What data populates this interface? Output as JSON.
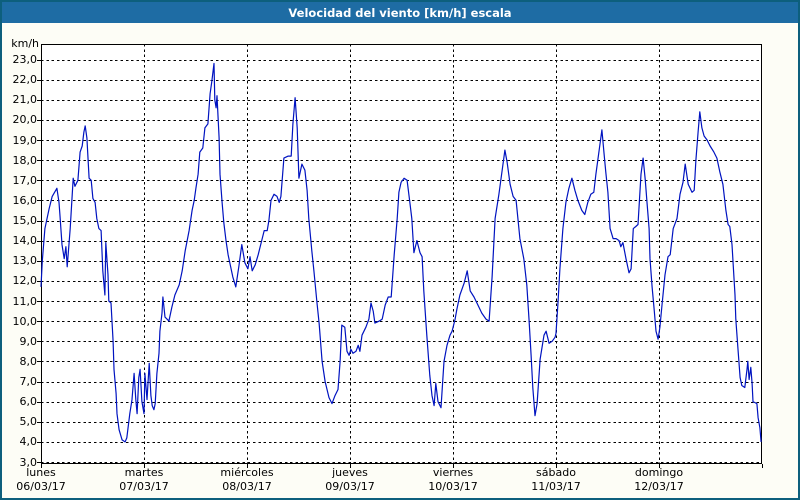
{
  "window": {
    "title": "Velocidad del viento [km/h] escala"
  },
  "chart_data": {
    "type": "line",
    "title": "Velocidad del viento [km/h] escala",
    "ylabel": "km/h",
    "xlabel": "",
    "ylim": [
      3,
      23
    ],
    "y_tick_step": 1,
    "grid": "dashed",
    "legend": "none",
    "y_tick_labels": [
      "23,0",
      "22,0",
      "21,0",
      "20,0",
      "19,0",
      "18,0",
      "17,0",
      "16,0",
      "15,0",
      "14,0",
      "13,0",
      "12,0",
      "11,0",
      "10,0",
      "9,0",
      "8,0",
      "7,0",
      "6,0",
      "5,0",
      "4,0",
      "3,0"
    ],
    "x_days": [
      {
        "name": "lunes",
        "date": "06/03/17"
      },
      {
        "name": "martes",
        "date": "07/03/17"
      },
      {
        "name": "miércoles",
        "date": "08/03/17"
      },
      {
        "name": "jueves",
        "date": "09/03/17"
      },
      {
        "name": "viernes",
        "date": "10/03/17"
      },
      {
        "name": "sábado",
        "date": "11/03/17"
      },
      {
        "name": "domingo",
        "date": "12/03/17"
      }
    ],
    "hours_total": 168,
    "series": [
      {
        "name": "Velocidad del viento [km/h]",
        "color": "#0013c0",
        "points": [
          [
            0,
            11.7
          ],
          [
            0.3,
            13.0
          ],
          [
            0.9,
            14.6
          ],
          [
            1.9,
            15.6
          ],
          [
            2.6,
            16.2
          ],
          [
            3.7,
            16.6
          ],
          [
            4.2,
            15.9
          ],
          [
            4.4,
            15.3
          ],
          [
            4.9,
            13.8
          ],
          [
            5.4,
            13.1
          ],
          [
            5.8,
            13.7
          ],
          [
            6.1,
            12.7
          ],
          [
            6.8,
            14.6
          ],
          [
            7.5,
            17.1
          ],
          [
            7.9,
            16.7
          ],
          [
            8.6,
            17.0
          ],
          [
            9.1,
            18.4
          ],
          [
            9.6,
            18.7
          ],
          [
            10.0,
            19.4
          ],
          [
            10.3,
            19.7
          ],
          [
            10.7,
            19.1
          ],
          [
            11.2,
            17.1
          ],
          [
            11.7,
            17.0
          ],
          [
            12.1,
            16.1
          ],
          [
            12.6,
            15.9
          ],
          [
            13.0,
            15.1
          ],
          [
            13.5,
            14.6
          ],
          [
            14.0,
            14.5
          ],
          [
            14.4,
            12.5
          ],
          [
            14.9,
            11.3
          ],
          [
            15.1,
            13.9
          ],
          [
            15.6,
            12.3
          ],
          [
            15.8,
            11.0
          ],
          [
            16.3,
            10.9
          ],
          [
            16.8,
            9.0
          ],
          [
            17.0,
            7.6
          ],
          [
            17.5,
            6.4
          ],
          [
            17.7,
            5.4
          ],
          [
            18.2,
            4.6
          ],
          [
            18.9,
            4.1
          ],
          [
            19.6,
            4.0
          ],
          [
            20.0,
            4.2
          ],
          [
            20.7,
            5.4
          ],
          [
            21.2,
            6.1
          ],
          [
            21.7,
            7.4
          ],
          [
            22.1,
            6.1
          ],
          [
            22.4,
            5.4
          ],
          [
            22.8,
            7.2
          ],
          [
            23.1,
            7.6
          ],
          [
            23.5,
            6.0
          ],
          [
            24.0,
            5.4
          ],
          [
            24.2,
            7.4
          ],
          [
            24.7,
            6.1
          ],
          [
            25.2,
            7.9
          ],
          [
            25.6,
            6.3
          ],
          [
            25.9,
            5.8
          ],
          [
            26.3,
            5.6
          ],
          [
            26.6,
            5.9
          ],
          [
            27.0,
            7.4
          ],
          [
            27.5,
            8.4
          ],
          [
            27.7,
            9.5
          ],
          [
            28.2,
            10.4
          ],
          [
            28.4,
            11.2
          ],
          [
            28.9,
            10.2
          ],
          [
            29.8,
            10.0
          ],
          [
            30.5,
            10.7
          ],
          [
            31.2,
            11.3
          ],
          [
            32.2,
            11.8
          ],
          [
            32.9,
            12.5
          ],
          [
            33.6,
            13.5
          ],
          [
            34.5,
            14.5
          ],
          [
            35.2,
            15.5
          ],
          [
            35.7,
            16.0
          ],
          [
            36.1,
            16.6
          ],
          [
            36.6,
            17.3
          ],
          [
            37.0,
            18.4
          ],
          [
            37.7,
            18.6
          ],
          [
            38.2,
            19.6
          ],
          [
            38.9,
            19.8
          ],
          [
            39.4,
            21.3
          ],
          [
            39.8,
            21.9
          ],
          [
            40.3,
            22.8
          ],
          [
            40.5,
            21.0
          ],
          [
            40.8,
            20.6
          ],
          [
            41.0,
            21.2
          ],
          [
            41.5,
            19.1
          ],
          [
            41.7,
            17.3
          ],
          [
            42.2,
            15.9
          ],
          [
            42.6,
            14.9
          ],
          [
            43.1,
            14.0
          ],
          [
            43.6,
            13.3
          ],
          [
            44.0,
            12.9
          ],
          [
            44.7,
            12.2
          ],
          [
            45.4,
            11.7
          ],
          [
            46.1,
            12.7
          ],
          [
            46.8,
            13.8
          ],
          [
            47.5,
            12.9
          ],
          [
            48.2,
            12.6
          ],
          [
            48.7,
            13.2
          ],
          [
            49.2,
            12.5
          ],
          [
            49.9,
            12.8
          ],
          [
            50.6,
            13.3
          ],
          [
            51.3,
            13.9
          ],
          [
            52.0,
            14.5
          ],
          [
            52.7,
            14.5
          ],
          [
            53.1,
            15.0
          ],
          [
            53.6,
            16.0
          ],
          [
            54.3,
            16.3
          ],
          [
            55.0,
            16.2
          ],
          [
            55.5,
            15.9
          ],
          [
            55.9,
            16.2
          ],
          [
            56.6,
            18.1
          ],
          [
            57.6,
            18.2
          ],
          [
            58.3,
            18.2
          ],
          [
            58.7,
            19.8
          ],
          [
            59.2,
            21.1
          ],
          [
            59.7,
            19.6
          ],
          [
            60.1,
            17.1
          ],
          [
            60.8,
            17.8
          ],
          [
            61.5,
            17.5
          ],
          [
            62.0,
            16.5
          ],
          [
            62.4,
            15.1
          ],
          [
            63.1,
            13.5
          ],
          [
            63.6,
            12.5
          ],
          [
            64.3,
            10.9
          ],
          [
            64.8,
            9.9
          ],
          [
            65.5,
            8.0
          ],
          [
            66.2,
            7.0
          ],
          [
            67.1,
            6.2
          ],
          [
            67.8,
            5.9
          ],
          [
            68.5,
            6.3
          ],
          [
            69.2,
            6.6
          ],
          [
            69.7,
            8.0
          ],
          [
            70.1,
            9.8
          ],
          [
            70.8,
            9.7
          ],
          [
            71.3,
            8.5
          ],
          [
            71.8,
            8.3
          ],
          [
            72.2,
            8.6
          ],
          [
            72.7,
            8.4
          ],
          [
            73.4,
            8.5
          ],
          [
            73.9,
            8.8
          ],
          [
            74.3,
            8.5
          ],
          [
            74.8,
            9.3
          ],
          [
            75.7,
            9.7
          ],
          [
            76.4,
            10.1
          ],
          [
            76.9,
            10.9
          ],
          [
            77.4,
            10.5
          ],
          [
            77.8,
            9.9
          ],
          [
            78.8,
            10.0
          ],
          [
            79.5,
            10.1
          ],
          [
            80.2,
            10.8
          ],
          [
            80.9,
            11.2
          ],
          [
            81.6,
            11.2
          ],
          [
            82.3,
            13.3
          ],
          [
            83.0,
            15.1
          ],
          [
            83.4,
            16.4
          ],
          [
            83.9,
            16.9
          ],
          [
            84.6,
            17.1
          ],
          [
            85.3,
            17.0
          ],
          [
            86.0,
            15.8
          ],
          [
            86.4,
            15.1
          ],
          [
            86.9,
            13.4
          ],
          [
            87.6,
            14.0
          ],
          [
            88.3,
            13.4
          ],
          [
            88.8,
            13.2
          ],
          [
            89.2,
            11.5
          ],
          [
            89.9,
            9.3
          ],
          [
            90.6,
            7.3
          ],
          [
            91.1,
            6.3
          ],
          [
            91.6,
            5.8
          ],
          [
            92.0,
            6.9
          ],
          [
            92.5,
            6.0
          ],
          [
            93.2,
            5.7
          ],
          [
            93.9,
            8.0
          ],
          [
            94.6,
            8.8
          ],
          [
            95.3,
            9.3
          ],
          [
            95.8,
            9.5
          ],
          [
            96.5,
            10.1
          ],
          [
            96.9,
            10.6
          ],
          [
            97.6,
            11.3
          ],
          [
            98.6,
            11.9
          ],
          [
            99.3,
            12.5
          ],
          [
            100.0,
            11.5
          ],
          [
            100.9,
            11.2
          ],
          [
            101.8,
            10.8
          ],
          [
            102.7,
            10.4
          ],
          [
            103.7,
            10.1
          ],
          [
            104.4,
            10.0
          ],
          [
            105.1,
            12.2
          ],
          [
            105.8,
            15.1
          ],
          [
            106.7,
            16.3
          ],
          [
            107.4,
            17.4
          ],
          [
            108.1,
            18.5
          ],
          [
            108.6,
            17.9
          ],
          [
            109.3,
            16.8
          ],
          [
            110.0,
            16.2
          ],
          [
            110.7,
            16.0
          ],
          [
            111.6,
            14.1
          ],
          [
            112.5,
            13.1
          ],
          [
            113.2,
            11.8
          ],
          [
            113.7,
            10.1
          ],
          [
            114.2,
            8.3
          ],
          [
            114.6,
            6.7
          ],
          [
            115.1,
            5.3
          ],
          [
            115.6,
            5.9
          ],
          [
            116.3,
            8.1
          ],
          [
            117.2,
            9.3
          ],
          [
            117.7,
            9.5
          ],
          [
            118.4,
            8.9
          ],
          [
            119.1,
            9.0
          ],
          [
            119.8,
            9.2
          ],
          [
            120.0,
            9.4
          ],
          [
            120.5,
            11.0
          ],
          [
            120.9,
            12.6
          ],
          [
            121.6,
            14.6
          ],
          [
            122.3,
            15.9
          ],
          [
            123.0,
            16.6
          ],
          [
            123.7,
            17.1
          ],
          [
            124.4,
            16.5
          ],
          [
            125.1,
            16.0
          ],
          [
            126.0,
            15.5
          ],
          [
            126.7,
            15.3
          ],
          [
            127.4,
            15.9
          ],
          [
            128.1,
            16.3
          ],
          [
            128.8,
            16.4
          ],
          [
            129.3,
            17.3
          ],
          [
            130.0,
            18.4
          ],
          [
            130.7,
            19.5
          ],
          [
            131.2,
            18.3
          ],
          [
            131.6,
            17.4
          ],
          [
            132.1,
            16.4
          ],
          [
            132.6,
            14.6
          ],
          [
            133.3,
            14.1
          ],
          [
            134.0,
            14.1
          ],
          [
            134.7,
            14.0
          ],
          [
            135.1,
            13.7
          ],
          [
            135.6,
            13.9
          ],
          [
            136.3,
            13.1
          ],
          [
            137.0,
            12.4
          ],
          [
            137.5,
            12.6
          ],
          [
            138.0,
            14.6
          ],
          [
            138.6,
            14.7
          ],
          [
            139.1,
            14.8
          ],
          [
            139.8,
            17.3
          ],
          [
            140.3,
            18.1
          ],
          [
            140.8,
            17.0
          ],
          [
            141.2,
            15.9
          ],
          [
            141.7,
            14.6
          ],
          [
            141.9,
            13.1
          ],
          [
            142.4,
            11.7
          ],
          [
            142.9,
            10.5
          ],
          [
            143.3,
            9.5
          ],
          [
            143.8,
            9.1
          ],
          [
            144.2,
            9.7
          ],
          [
            144.7,
            10.8
          ],
          [
            145.4,
            12.3
          ],
          [
            146.1,
            13.2
          ],
          [
            146.6,
            13.3
          ],
          [
            147.3,
            14.6
          ],
          [
            148.2,
            15.1
          ],
          [
            148.9,
            16.3
          ],
          [
            149.6,
            16.9
          ],
          [
            150.1,
            17.8
          ],
          [
            150.8,
            16.8
          ],
          [
            151.7,
            16.4
          ],
          [
            152.2,
            16.5
          ],
          [
            152.6,
            18.0
          ],
          [
            153.1,
            19.4
          ],
          [
            153.5,
            20.4
          ],
          [
            154.0,
            19.6
          ],
          [
            154.5,
            19.2
          ],
          [
            155.2,
            19.0
          ],
          [
            155.9,
            18.7
          ],
          [
            156.8,
            18.4
          ],
          [
            157.5,
            18.1
          ],
          [
            158.2,
            17.4
          ],
          [
            158.9,
            16.8
          ],
          [
            159.6,
            15.5
          ],
          [
            160.1,
            14.8
          ],
          [
            160.5,
            14.7
          ],
          [
            161.0,
            13.8
          ],
          [
            161.7,
            11.3
          ],
          [
            161.9,
            10.1
          ],
          [
            162.4,
            8.6
          ],
          [
            162.9,
            7.2
          ],
          [
            163.3,
            6.8
          ],
          [
            164.0,
            6.7
          ],
          [
            164.5,
            7.6
          ],
          [
            164.7,
            8.0
          ],
          [
            165.0,
            7.1
          ],
          [
            165.4,
            7.7
          ],
          [
            165.7,
            6.9
          ],
          [
            165.9,
            6.0
          ],
          [
            166.8,
            5.9
          ],
          [
            167.1,
            5.2
          ],
          [
            167.5,
            4.7
          ],
          [
            167.8,
            4.0
          ]
        ]
      }
    ],
    "colors": {
      "grid": "#000000",
      "plot_background": "#ffffff",
      "titlebar": "#1e6ca4",
      "window_border": "#0d5f7d"
    }
  }
}
